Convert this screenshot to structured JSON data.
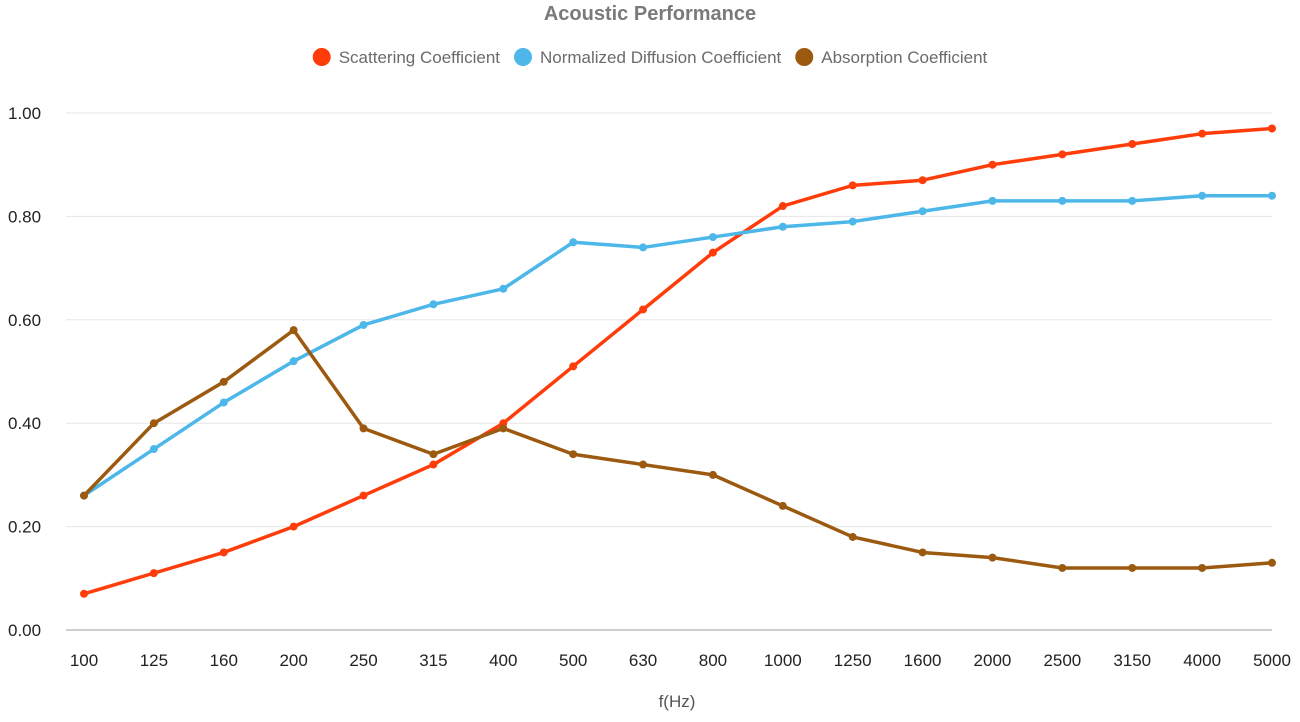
{
  "chart_data": {
    "type": "line",
    "title": "Acoustic Performance",
    "xlabel": "f(Hz)",
    "ylabel": "",
    "categories": [
      "100",
      "125",
      "160",
      "200",
      "250",
      "315",
      "400",
      "500",
      "630",
      "800",
      "1000",
      "1250",
      "1600",
      "2000",
      "2500",
      "3150",
      "4000",
      "5000"
    ],
    "ylim": [
      0,
      1
    ],
    "yticks": [
      "0.00",
      "0.20",
      "0.40",
      "0.60",
      "0.80",
      "1.00"
    ],
    "ytick_values": [
      0,
      0.2,
      0.4,
      0.6,
      0.8,
      1.0
    ],
    "grid": true,
    "legend_position": "top",
    "series": [
      {
        "name": "Scattering Coefficient",
        "color": "#ff3d0a",
        "values": [
          0.07,
          0.11,
          0.15,
          0.2,
          0.26,
          0.32,
          0.4,
          0.51,
          0.62,
          0.73,
          0.82,
          0.86,
          0.87,
          0.9,
          0.92,
          0.94,
          0.96,
          0.97
        ]
      },
      {
        "name": "Normalized Diffusion Coefficient",
        "color": "#4cb7e8",
        "values": [
          0.26,
          0.35,
          0.44,
          0.52,
          0.59,
          0.63,
          0.66,
          0.75,
          0.74,
          0.76,
          0.78,
          0.79,
          0.81,
          0.83,
          0.83,
          0.83,
          0.84,
          0.84
        ]
      },
      {
        "name": "Absorption Coefficient",
        "color": "#9b5a10",
        "values": [
          0.26,
          0.4,
          0.48,
          0.58,
          0.39,
          0.34,
          0.39,
          0.34,
          0.32,
          0.3,
          0.24,
          0.18,
          0.15,
          0.14,
          0.12,
          0.12,
          0.12,
          0.13
        ]
      }
    ]
  }
}
